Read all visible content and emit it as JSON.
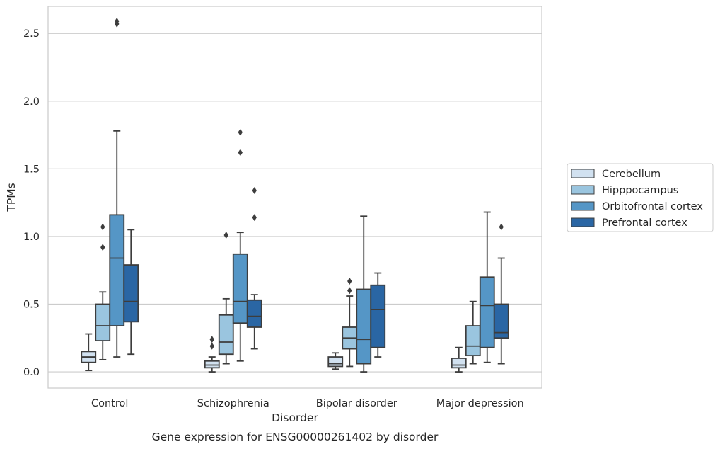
{
  "chart_data": {
    "type": "boxplot",
    "title": "Gene expression for ENSG00000261402 by disorder",
    "xlabel": "Disorder",
    "ylabel": "TPMs",
    "ylim": [
      -0.12,
      2.7
    ],
    "yticks": [
      "0.0",
      "0.5",
      "1.0",
      "1.5",
      "2.0",
      "2.5"
    ],
    "grid": "horizontal",
    "legend_position": "right",
    "categories": [
      "Control",
      "Schizophrenia",
      "Bipolar disorder",
      "Major depression"
    ],
    "series": [
      {
        "name": "Cerebellum",
        "color": "#d1e1f0",
        "boxes": [
          {
            "whislo": 0.01,
            "q1": 0.07,
            "med": 0.11,
            "q3": 0.15,
            "whishi": 0.28,
            "fliers": []
          },
          {
            "whislo": 0.0,
            "q1": 0.03,
            "med": 0.05,
            "q3": 0.08,
            "whishi": 0.11,
            "fliers": [
              0.19,
              0.24
            ]
          },
          {
            "whislo": 0.02,
            "q1": 0.04,
            "med": 0.06,
            "q3": 0.11,
            "whishi": 0.14,
            "fliers": []
          },
          {
            "whislo": 0.0,
            "q1": 0.03,
            "med": 0.05,
            "q3": 0.1,
            "whishi": 0.18,
            "fliers": []
          }
        ]
      },
      {
        "name": "Hipppocampus",
        "color": "#9ac5df",
        "boxes": [
          {
            "whislo": 0.09,
            "q1": 0.23,
            "med": 0.34,
            "q3": 0.5,
            "whishi": 0.59,
            "fliers": [
              0.92,
              1.07
            ]
          },
          {
            "whislo": 0.06,
            "q1": 0.13,
            "med": 0.22,
            "q3": 0.42,
            "whishi": 0.54,
            "fliers": [
              1.01
            ]
          },
          {
            "whislo": 0.04,
            "q1": 0.17,
            "med": 0.25,
            "q3": 0.33,
            "whishi": 0.56,
            "fliers": [
              0.6,
              0.67
            ]
          },
          {
            "whislo": 0.06,
            "q1": 0.12,
            "med": 0.19,
            "q3": 0.34,
            "whishi": 0.52,
            "fliers": []
          }
        ]
      },
      {
        "name": "Orbitofrontal cortex",
        "color": "#5596c6",
        "boxes": [
          {
            "whislo": 0.11,
            "q1": 0.34,
            "med": 0.84,
            "q3": 1.16,
            "whishi": 1.78,
            "fliers": [
              2.57,
              2.59
            ]
          },
          {
            "whislo": 0.08,
            "q1": 0.36,
            "med": 0.52,
            "q3": 0.87,
            "whishi": 1.03,
            "fliers": [
              1.62,
              1.77
            ]
          },
          {
            "whislo": 0.0,
            "q1": 0.06,
            "med": 0.24,
            "q3": 0.61,
            "whishi": 1.15,
            "fliers": []
          },
          {
            "whislo": 0.07,
            "q1": 0.18,
            "med": 0.49,
            "q3": 0.7,
            "whishi": 1.18,
            "fliers": []
          }
        ]
      },
      {
        "name": "Prefrontal cortex",
        "color": "#2a66a4",
        "boxes": [
          {
            "whislo": 0.13,
            "q1": 0.37,
            "med": 0.52,
            "q3": 0.79,
            "whishi": 1.05,
            "fliers": []
          },
          {
            "whislo": 0.17,
            "q1": 0.33,
            "med": 0.41,
            "q3": 0.53,
            "whishi": 0.57,
            "fliers": [
              1.14,
              1.34
            ]
          },
          {
            "whislo": 0.11,
            "q1": 0.18,
            "med": 0.46,
            "q3": 0.64,
            "whishi": 0.73,
            "fliers": []
          },
          {
            "whislo": 0.06,
            "q1": 0.25,
            "med": 0.29,
            "q3": 0.5,
            "whishi": 0.84,
            "fliers": [
              1.07
            ]
          }
        ]
      }
    ]
  }
}
